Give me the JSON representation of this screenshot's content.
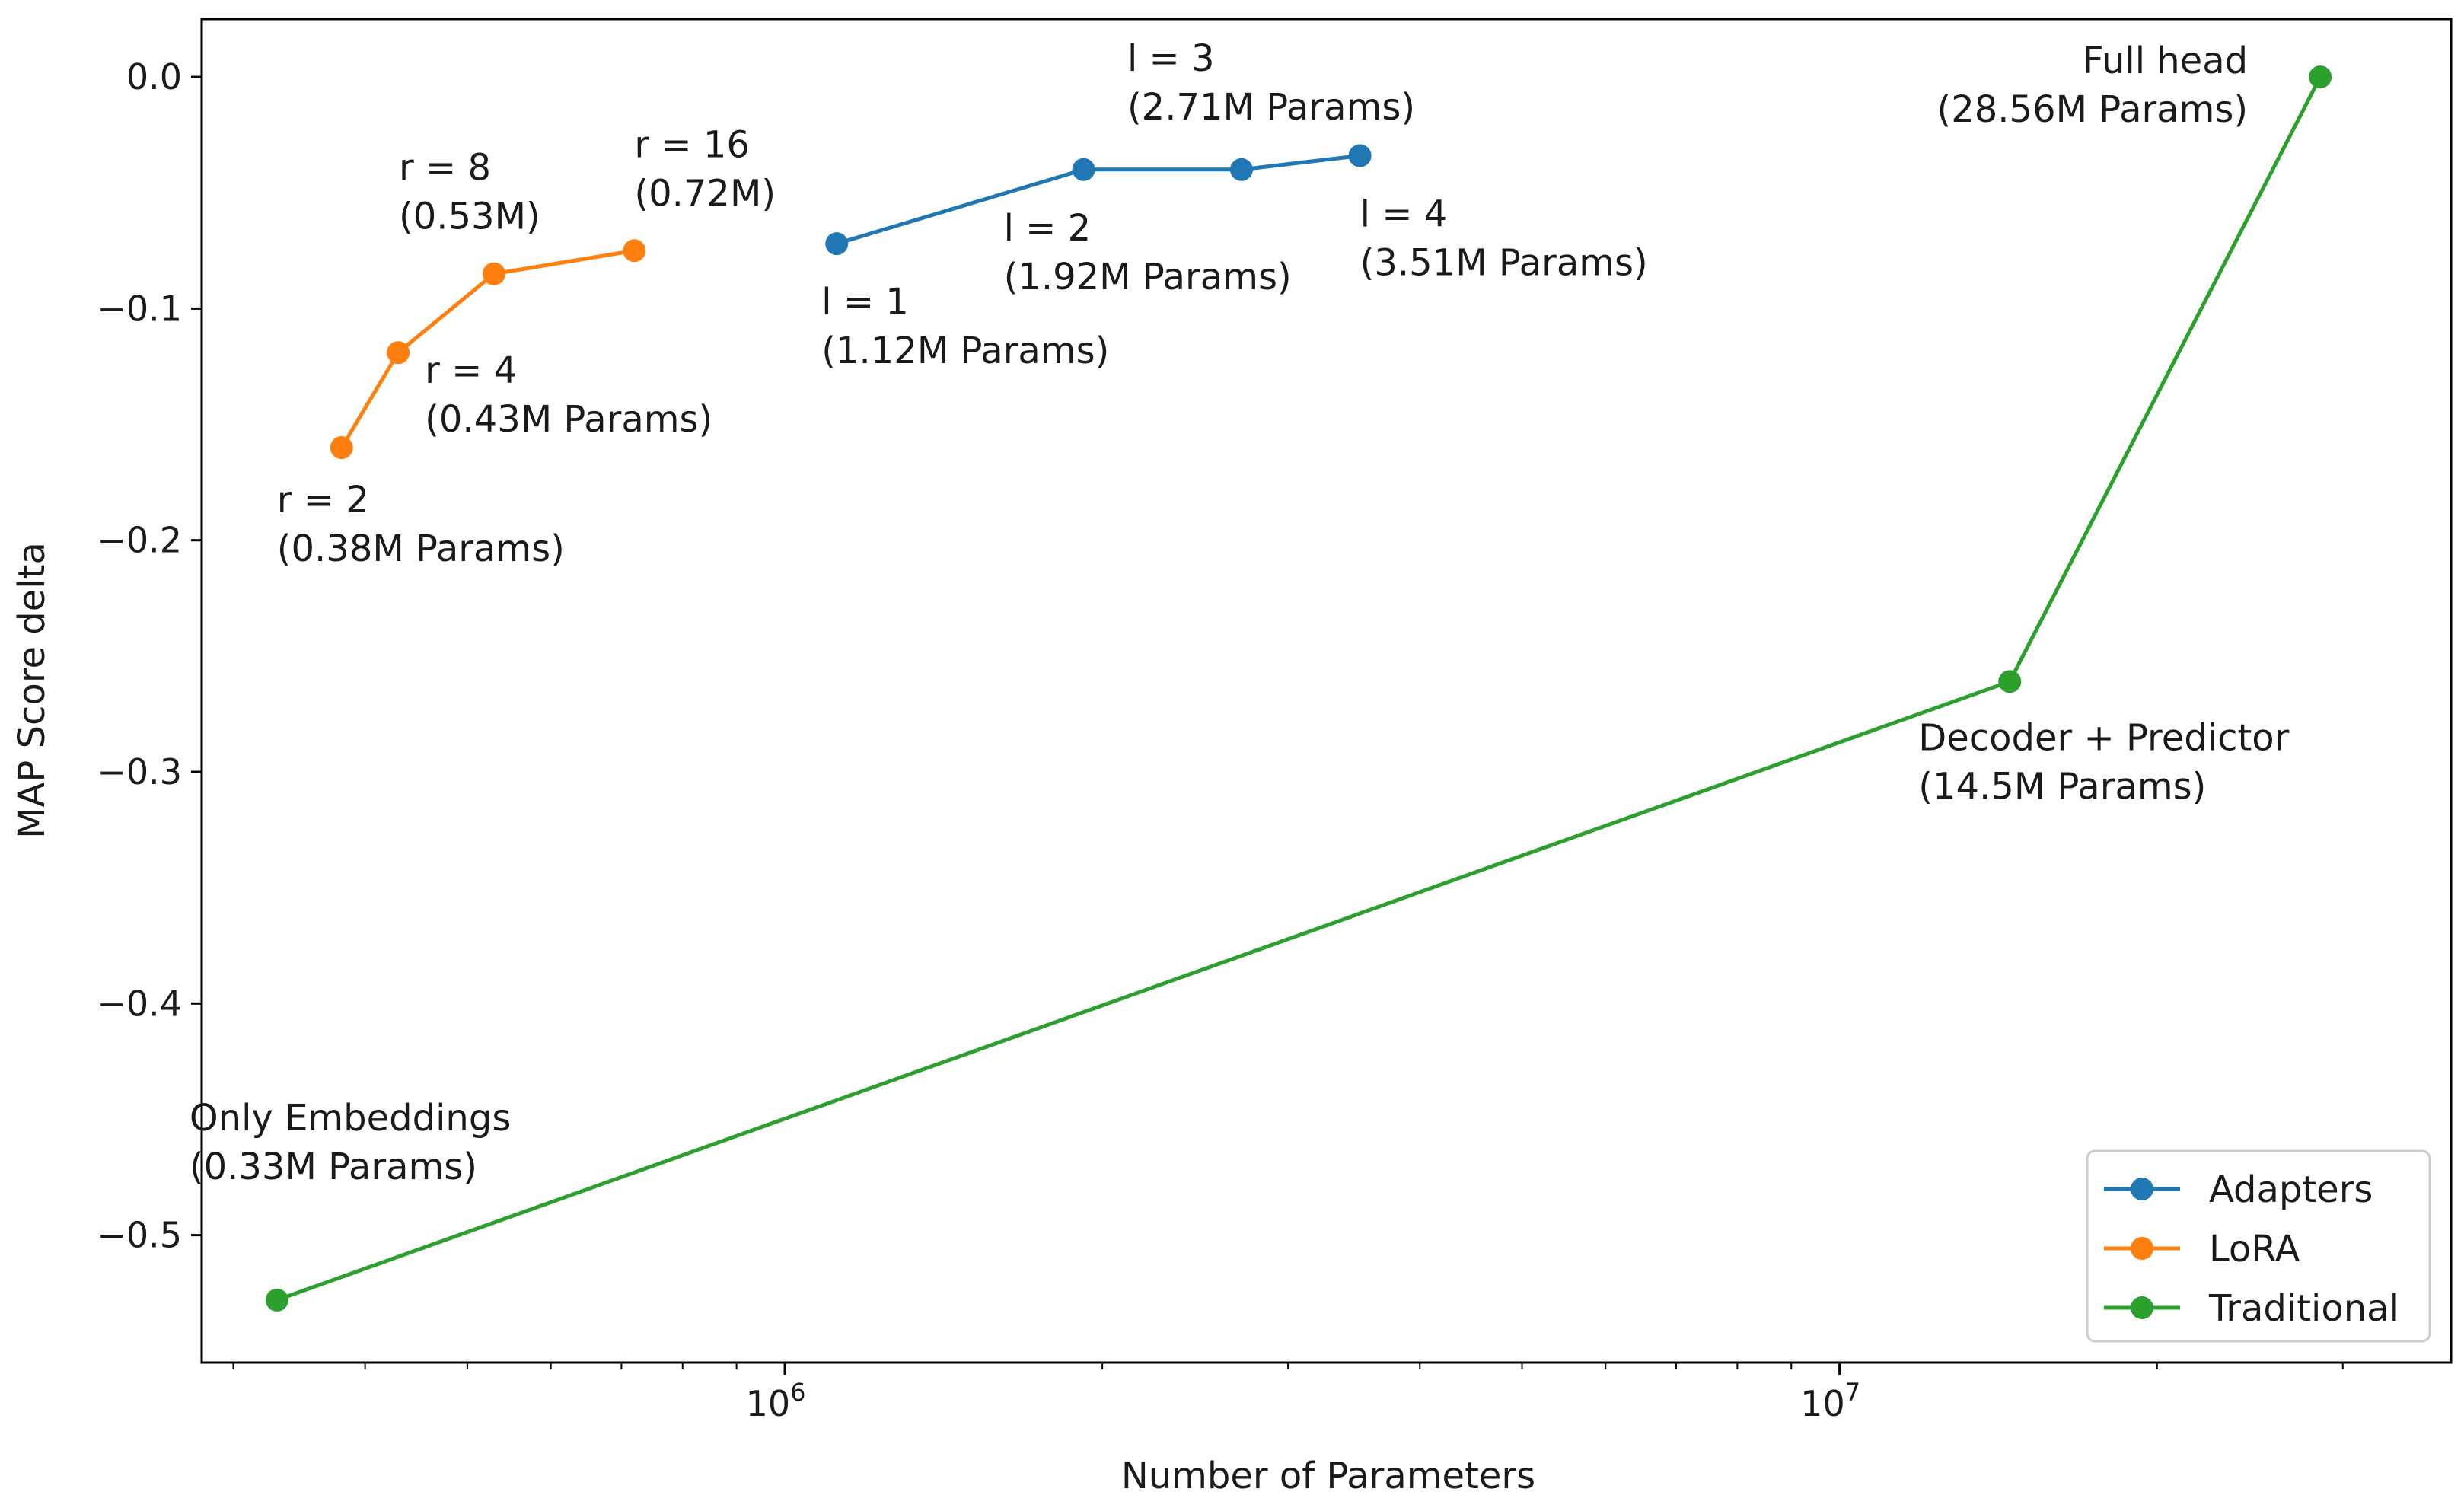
{
  "chart_data": {
    "type": "line",
    "title": "",
    "xlabel": "Number of Parameters",
    "ylabel": "MAP Score delta",
    "xscale": "log",
    "xlim": [
      280000,
      38000000
    ],
    "ylim": [
      -0.555,
      0.025
    ],
    "yticks": [
      0.0,
      -0.1,
      -0.2,
      -0.3,
      -0.4,
      -0.5
    ],
    "ytick_labels": [
      "0.0",
      "−0.1",
      "−0.2",
      "−0.3",
      "−0.4",
      "−0.5"
    ],
    "xticks": [
      {
        "value": 1000000,
        "base": "10",
        "exp": "6"
      },
      {
        "value": 10000000,
        "base": "10",
        "exp": "7"
      }
    ],
    "legend_position": "lower-right",
    "series": [
      {
        "name": "Adapters",
        "color": "#1f77b4",
        "points": [
          {
            "x": 1120000,
            "y": -0.072,
            "label": [
              "l = 1",
              "(1.12M Params)"
            ],
            "anchor": "below"
          },
          {
            "x": 1920000,
            "y": -0.04,
            "label": [
              "l = 2",
              "(1.92M Params)"
            ],
            "anchor": "below"
          },
          {
            "x": 2710000,
            "y": -0.04,
            "label": [
              "l = 3",
              "(2.71M Params)"
            ],
            "anchor": "above"
          },
          {
            "x": 3510000,
            "y": -0.034,
            "label": [
              "l = 4",
              "(3.51M Params)"
            ],
            "anchor": "below"
          }
        ]
      },
      {
        "name": "LoRA",
        "color": "#ff7f0e",
        "points": [
          {
            "x": 380000,
            "y": -0.16,
            "label": [
              "r = 2",
              "(0.38M Params)"
            ],
            "anchor": "below"
          },
          {
            "x": 430000,
            "y": -0.119,
            "label": [
              "r = 4",
              "(0.43M Params)"
            ],
            "anchor": "right-below"
          },
          {
            "x": 530000,
            "y": -0.085,
            "label": [
              "r = 8",
              "(0.53M)"
            ],
            "anchor": "above-left"
          },
          {
            "x": 720000,
            "y": -0.075,
            "label": [
              "r = 16",
              "(0.72M)"
            ],
            "anchor": "above"
          }
        ]
      },
      {
        "name": "Traditional",
        "color": "#2ca02c",
        "points": [
          {
            "x": 330000,
            "y": -0.528,
            "label": [
              "Only Embeddings",
              "(0.33M Params)"
            ],
            "anchor": "above-left"
          },
          {
            "x": 14500000,
            "y": -0.261,
            "label": [
              "Decoder + Predictor",
              "(14.5M Params)"
            ],
            "anchor": "below"
          },
          {
            "x": 28560000,
            "y": 0.0,
            "label": [
              "Full head",
              "(28.56M Params)"
            ],
            "anchor": "left"
          }
        ]
      }
    ]
  }
}
